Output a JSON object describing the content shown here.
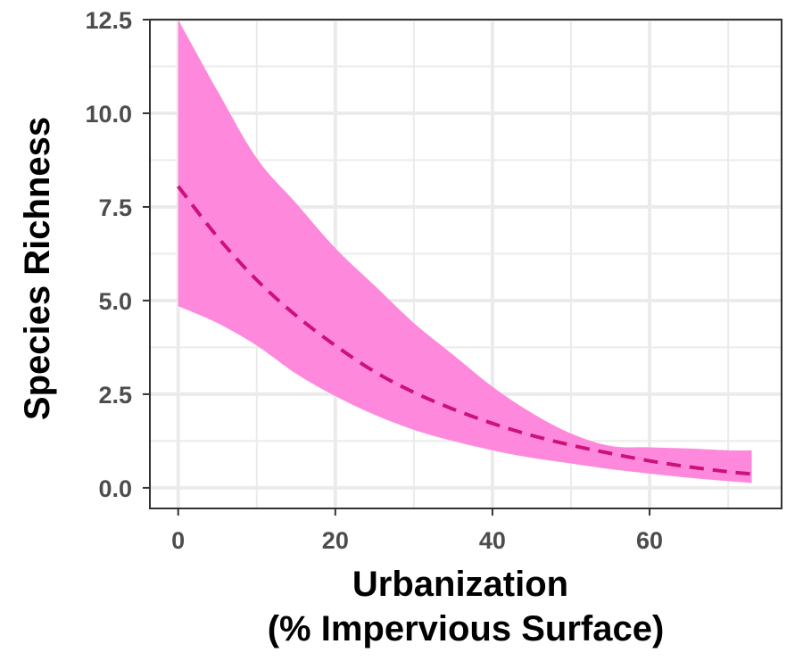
{
  "chart_data": {
    "type": "line",
    "title": "",
    "xlabel_lines": [
      "Urbanization",
      "(% Impervious Surface)"
    ],
    "ylabel": "Species Richness",
    "xlim": [
      -3.6,
      76.8
    ],
    "ylim": [
      -0.55,
      12.5
    ],
    "xticks": [
      0,
      20,
      40,
      60
    ],
    "xtick_labels": [
      "0",
      "20",
      "40",
      "60"
    ],
    "yticks": [
      0,
      2.5,
      5,
      7.5,
      10,
      12.5
    ],
    "ytick_labels": [
      "0.0",
      "2.5",
      "5.0",
      "7.5",
      "10.0",
      "12.5"
    ],
    "x_minor_gridlines": [
      10,
      30,
      50,
      70
    ],
    "y_minor_gridlines": [
      1.25,
      3.75,
      6.25,
      8.75,
      11.25
    ],
    "grid": true,
    "series": [
      {
        "style": "dashed",
        "x": [
          0,
          5,
          10,
          15,
          20,
          25,
          30,
          35,
          40,
          45,
          50,
          55,
          60,
          65,
          70,
          73
        ],
        "y": [
          8.05,
          6.7,
          5.55,
          4.6,
          3.8,
          3.1,
          2.55,
          2.1,
          1.72,
          1.4,
          1.14,
          0.92,
          0.72,
          0.56,
          0.43,
          0.37
        ],
        "lower": [
          4.85,
          4.4,
          3.8,
          3.05,
          2.45,
          1.95,
          1.55,
          1.25,
          1.0,
          0.8,
          0.65,
          0.5,
          0.38,
          0.27,
          0.18,
          0.13
        ],
        "upper": [
          12.5,
          10.6,
          8.8,
          7.6,
          6.4,
          5.4,
          4.4,
          3.55,
          2.7,
          2.0,
          1.45,
          1.12,
          1.08,
          1.05,
          1.0,
          1.0
        ]
      }
    ],
    "colors": {
      "band": "#fe88dc",
      "line": "#cc1178",
      "grid": "#ebebeb",
      "panel_border": "#333333",
      "tick_text": "#4d4d4d"
    }
  }
}
